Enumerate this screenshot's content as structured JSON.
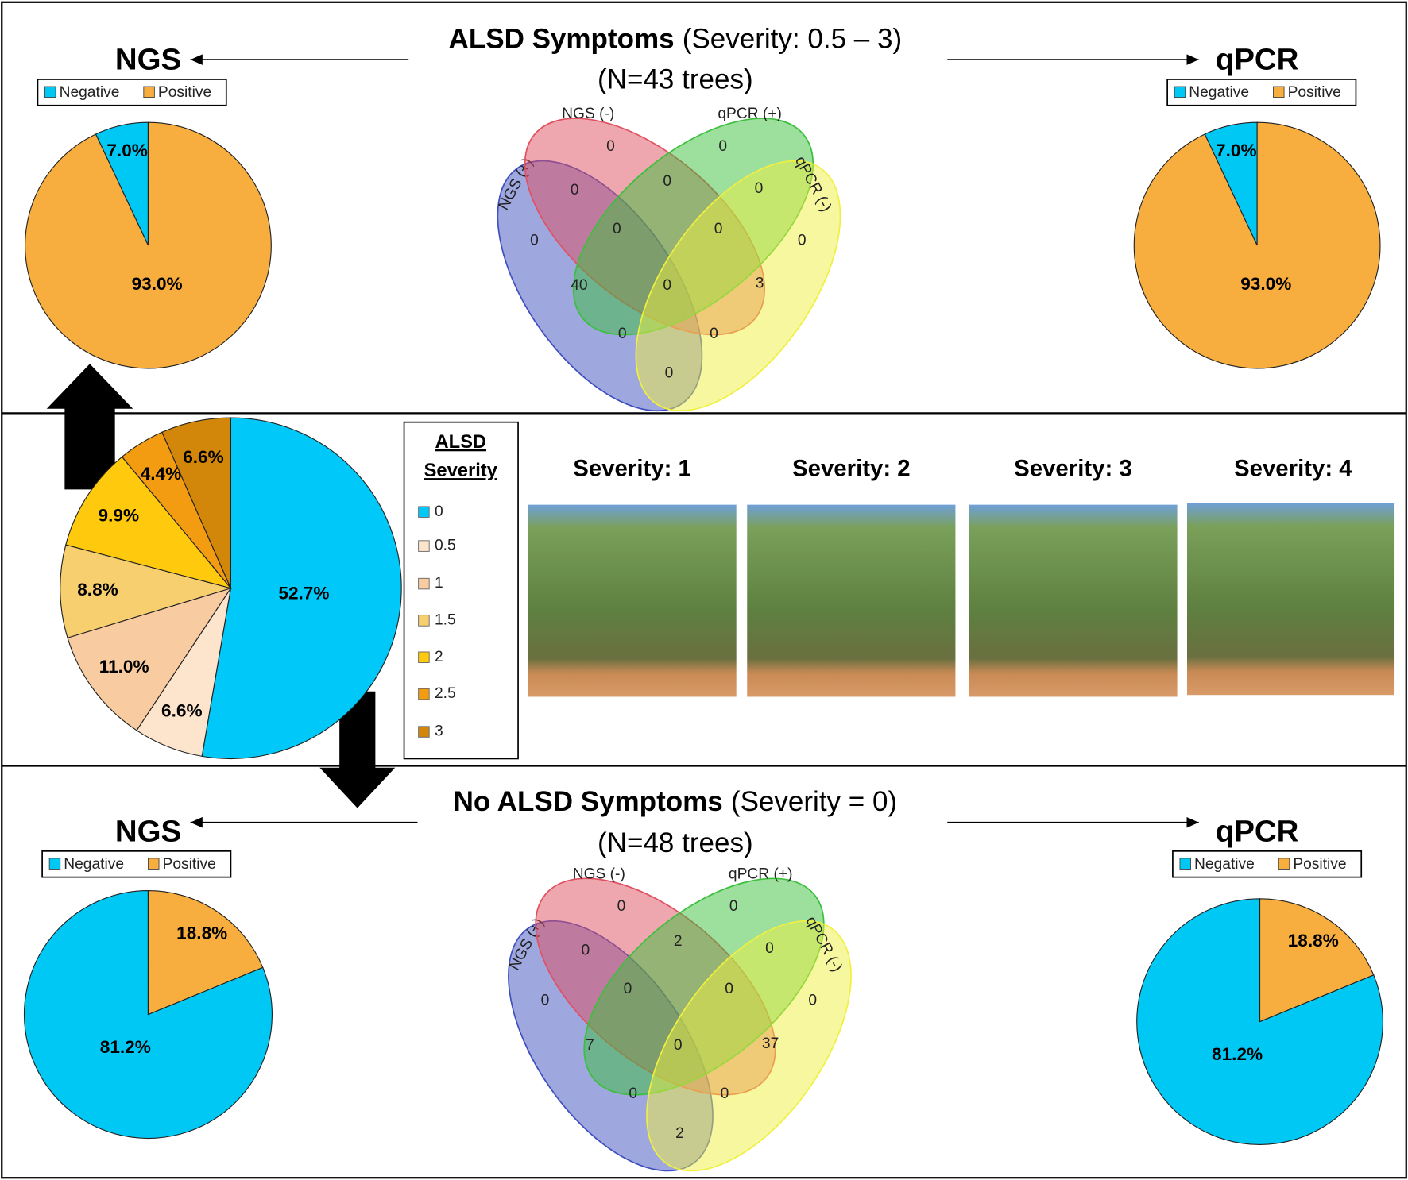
{
  "chart_data": [
    {
      "type": "pie",
      "title": "NGS",
      "categories": [
        "Negative",
        "Positive"
      ],
      "values": [
        7.0,
        93.0
      ],
      "value_labels": [
        "7.0%",
        "93.0%"
      ],
      "colors": [
        "#00c8f5",
        "#f7ae3e"
      ],
      "clockwise": false
    },
    {
      "type": "venn",
      "title": "ALSD Symptoms",
      "title_note": "(Severity: 0.5 – 3)",
      "subtitle": "(N=43 trees)",
      "sets": [
        {
          "name": "NGS (+)",
          "color": "#3f4fc0"
        },
        {
          "name": "NGS (-)",
          "color": "#e05060"
        },
        {
          "name": "qPCR (+)",
          "color": "#3cbf3c"
        },
        {
          "name": "qPCR (-)",
          "color": "#f0f040"
        }
      ],
      "values": [
        0,
        0,
        0,
        0,
        0,
        0,
        0,
        0,
        0,
        40,
        0,
        3,
        0,
        0,
        0
      ]
    },
    {
      "type": "pie",
      "title": "qPCR",
      "categories": [
        "Negative",
        "Positive"
      ],
      "values": [
        7.0,
        93.0
      ],
      "value_labels": [
        "7.0%",
        "93.0%"
      ],
      "colors": [
        "#00c8f5",
        "#f7ae3e"
      ],
      "clockwise": false
    },
    {
      "type": "pie",
      "legend_title": [
        "ALSD",
        "Severity"
      ],
      "categories": [
        "0",
        "0.5",
        "1",
        "1.5",
        "2",
        "2.5",
        "3"
      ],
      "values": [
        52.7,
        6.6,
        11.0,
        8.8,
        9.9,
        4.4,
        6.6
      ],
      "value_labels": [
        "52.7%",
        "6.6%",
        "11.0%",
        "8.8%",
        "9.9%",
        "4.4%",
        "6.6%"
      ],
      "colors": [
        "#00c8f8",
        "#fde4cc",
        "#f9cba0",
        "#f8cf6f",
        "#ffc90e",
        "#f39c12",
        "#d3870a"
      ],
      "clockwise": true
    },
    {
      "type": "pie",
      "title": "NGS",
      "categories": [
        "Negative",
        "Positive"
      ],
      "values": [
        81.2,
        18.8
      ],
      "value_labels": [
        "81.2%",
        "18.8%"
      ],
      "colors": [
        "#00c8f5",
        "#f7ae3e"
      ],
      "clockwise": false
    },
    {
      "type": "venn",
      "title": "No ALSD Symptoms",
      "title_note": "(Severity = 0)",
      "subtitle": "(N=48 trees)",
      "sets": [
        {
          "name": "NGS (+)",
          "color": "#3f4fc0"
        },
        {
          "name": "NGS (-)",
          "color": "#e05060"
        },
        {
          "name": "qPCR (+)",
          "color": "#3cbf3c"
        },
        {
          "name": "qPCR (-)",
          "color": "#f0f040"
        }
      ],
      "values": [
        0,
        0,
        0,
        0,
        0,
        2,
        0,
        0,
        0,
        7,
        0,
        37,
        0,
        0,
        2
      ]
    },
    {
      "type": "pie",
      "title": "qPCR",
      "categories": [
        "Negative",
        "Positive"
      ],
      "values": [
        81.2,
        18.8
      ],
      "value_labels": [
        "81.2%",
        "18.8%"
      ],
      "colors": [
        "#00c8f5",
        "#f7ae3e"
      ],
      "clockwise": false
    }
  ],
  "photos": [
    {
      "label": "Severity: 1"
    },
    {
      "label": "Severity: 2"
    },
    {
      "label": "Severity: 3"
    },
    {
      "label": "Severity: 4"
    }
  ]
}
